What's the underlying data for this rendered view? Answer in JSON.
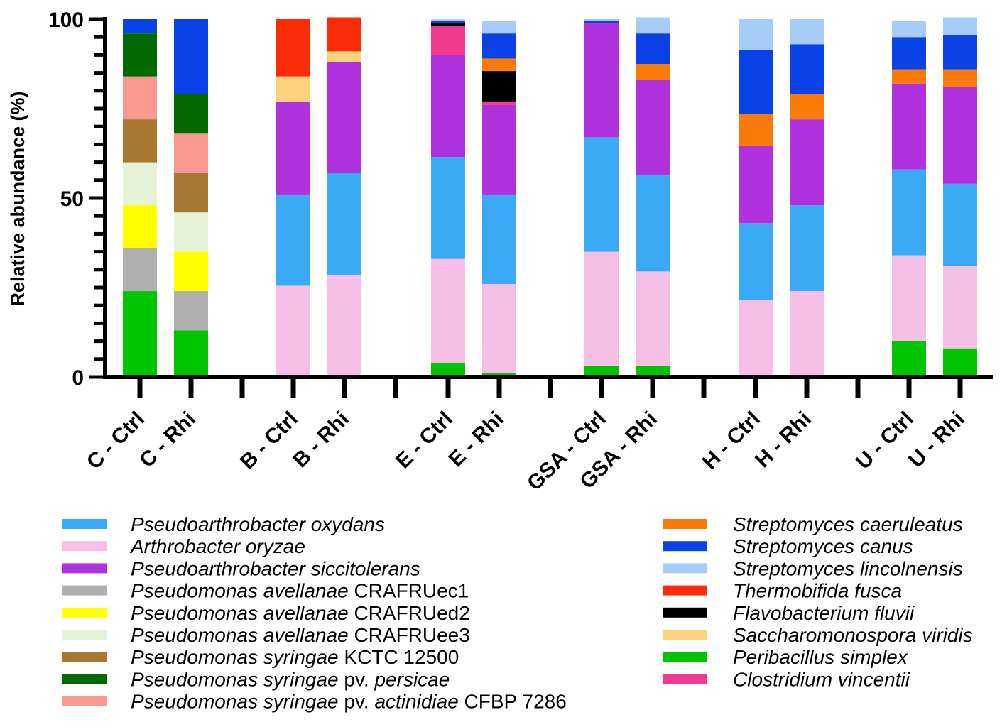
{
  "chart_data": {
    "type": "bar",
    "stacked": true,
    "ylabel": "Relative abundance (%)",
    "ylim": [
      0,
      100
    ],
    "yticks": [
      0,
      50,
      100
    ],
    "categories": [
      "C - Ctrl",
      "C - Rhi",
      "B - Ctrl",
      "B - Rhi",
      "E - Ctrl",
      "E - Rhi",
      "GSA - Ctrl",
      "GSA - Rhi",
      "H - Ctrl",
      "H - Rhi",
      "U - Ctrl",
      "U - Rhi"
    ],
    "series": [
      {
        "key": "peribacillus",
        "name": "Peribacillus simplex",
        "legend_parts": [
          {
            "t": "Peribacillus simplex",
            "i": true
          }
        ],
        "color": "#00c400",
        "values": [
          24,
          13,
          0,
          0,
          4,
          1,
          3,
          3,
          0,
          0,
          10,
          8
        ]
      },
      {
        "key": "ec1",
        "name": "Pseudomonas avellanae CRAFRUec1",
        "legend_parts": [
          {
            "t": "Pseudomonas avellanae",
            "i": true
          },
          {
            "t": " CRAFRUec1",
            "i": false
          }
        ],
        "color": "#b0b0b0",
        "values": [
          12,
          11,
          0,
          0,
          0,
          0,
          0,
          0,
          0,
          0,
          0,
          0
        ]
      },
      {
        "key": "ed2",
        "name": "Pseudomonas avellanae CRAFRUed2",
        "legend_parts": [
          {
            "t": "Pseudomonas avellanae",
            "i": true
          },
          {
            "t": " CRAFRUed2",
            "i": false
          }
        ],
        "color": "#ffff00",
        "values": [
          12,
          11,
          0,
          0,
          0,
          0,
          0,
          0,
          0,
          0,
          0,
          0
        ]
      },
      {
        "key": "ee3",
        "name": "Pseudomonas avellanae CRAFRUee3",
        "legend_parts": [
          {
            "t": "Pseudomonas avellanae",
            "i": true
          },
          {
            "t": " CRAFRUee3",
            "i": false
          }
        ],
        "color": "#e6f2d8",
        "values": [
          12,
          11,
          0,
          0,
          0,
          0,
          0,
          0,
          0,
          0,
          0,
          0
        ]
      },
      {
        "key": "kctc",
        "name": "Pseudomonas syringae KCTC 12500",
        "legend_parts": [
          {
            "t": "Pseudomonas syringae",
            "i": true
          },
          {
            "t": " KCTC 12500",
            "i": false
          }
        ],
        "color": "#a67832",
        "values": [
          12,
          11,
          0,
          0,
          0,
          0,
          0,
          0,
          0,
          0,
          0,
          0
        ]
      },
      {
        "key": "actinidiae",
        "name": "Pseudomonas syringae pv. actinidiae CFBP 7286",
        "legend_parts": [
          {
            "t": "Pseudomonas syringae",
            "i": true
          },
          {
            "t": " pv. ",
            "i": false
          },
          {
            "t": "actinidiae",
            "i": true
          },
          {
            "t": " CFBP 7286",
            "i": false
          }
        ],
        "color": "#f8988e",
        "values": [
          12,
          11,
          0,
          0,
          0,
          0,
          0,
          0,
          0,
          0,
          0,
          0
        ]
      },
      {
        "key": "persicae",
        "name": "Pseudomonas syringae pv. persicae",
        "legend_parts": [
          {
            "t": "Pseudomonas syringae",
            "i": true
          },
          {
            "t": " pv. ",
            "i": false
          },
          {
            "t": "persicae",
            "i": true
          }
        ],
        "color": "#006a00",
        "values": [
          12,
          11,
          0,
          0,
          0,
          0,
          0,
          0,
          0,
          0,
          0,
          0
        ]
      },
      {
        "key": "arthro",
        "name": "Arthrobacter oryzae",
        "legend_parts": [
          {
            "t": "Arthrobacter oryzae",
            "i": true
          }
        ],
        "color": "#f6bfe6",
        "values": [
          0,
          0,
          25.5,
          28.5,
          29,
          25,
          32,
          26.5,
          21.5,
          24,
          24,
          23
        ]
      },
      {
        "key": "oxydans",
        "name": "Pseudoarthrobacter oxydans",
        "legend_parts": [
          {
            "t": "Pseudoarthrobacter oxydans",
            "i": true
          }
        ],
        "color": "#3aaaf6",
        "values": [
          0,
          0,
          25.5,
          28.5,
          28.5,
          25,
          32,
          27,
          21.5,
          24,
          24,
          23
        ]
      },
      {
        "key": "sicci",
        "name": "Pseudoarthrobacter siccitolerans",
        "legend_parts": [
          {
            "t": "Pseudoarthrobacter siccitolerans",
            "i": true
          }
        ],
        "color": "#b032de",
        "values": [
          0,
          0,
          26,
          31,
          28.5,
          25,
          32,
          26.5,
          21.5,
          24,
          24,
          27
        ]
      },
      {
        "key": "clostridium",
        "name": "Clostridium vincentii",
        "legend_parts": [
          {
            "t": "Clostridium vincentii",
            "i": true
          }
        ],
        "color": "#f23a8e",
        "values": [
          0,
          0,
          0,
          0,
          8,
          1,
          0,
          0,
          0,
          0,
          0,
          0
        ]
      },
      {
        "key": "flavo",
        "name": "Flavobacterium fluvii",
        "legend_parts": [
          {
            "t": "Flavobacterium fluvii",
            "i": true
          }
        ],
        "color": "#000000",
        "values": [
          0,
          0,
          0,
          0,
          1,
          8.5,
          0,
          0,
          0,
          0,
          0,
          0
        ]
      },
      {
        "key": "caeruleatus",
        "name": "Streptomyces caeruleatus",
        "legend_parts": [
          {
            "t": "Streptomyces caeruleatus",
            "i": true
          }
        ],
        "color": "#fa7a0a",
        "values": [
          0,
          0,
          0,
          0,
          0,
          3.5,
          0,
          4.5,
          9,
          7,
          4,
          5
        ]
      },
      {
        "key": "canus",
        "name": "Streptomyces canus",
        "legend_parts": [
          {
            "t": "Streptomyces canus",
            "i": true
          }
        ],
        "color": "#0a42e8",
        "values": [
          4,
          21,
          0,
          0,
          0.5,
          7,
          0.5,
          8.5,
          18,
          14,
          9,
          9.5
        ]
      },
      {
        "key": "saccharo",
        "name": "Saccharomonospora viridis",
        "legend_parts": [
          {
            "t": "Saccharomonospora viridis",
            "i": true
          }
        ],
        "color": "#fdd27e",
        "values": [
          0,
          0,
          7,
          3,
          0,
          0,
          0,
          0,
          0,
          0,
          0,
          0
        ]
      },
      {
        "key": "thermo",
        "name": "Thermobifida fusca",
        "legend_parts": [
          {
            "t": "Thermobifida fusca",
            "i": true
          }
        ],
        "color": "#fa2c08",
        "values": [
          0,
          0,
          16,
          9.5,
          0,
          0,
          0,
          0,
          0,
          0,
          0,
          0
        ]
      },
      {
        "key": "lincolnensis",
        "name": "Streptomyces lincolnensis",
        "legend_parts": [
          {
            "t": "Streptomyces lincolnensis",
            "i": true
          }
        ],
        "color": "#a6cdf8",
        "values": [
          0,
          0,
          0,
          0,
          0.5,
          3.5,
          0.5,
          4.5,
          8.5,
          7,
          4.5,
          5
        ]
      }
    ],
    "legend": {
      "position": "bottom",
      "left_column": [
        "oxydans",
        "arthro",
        "sicci",
        "ec1",
        "ed2",
        "ee3",
        "kctc",
        "persicae",
        "actinidiae"
      ],
      "right_column": [
        "caeruleatus",
        "canus",
        "lincolnensis",
        "thermo",
        "flavo",
        "saccharo",
        "peribacillus",
        "clostridium"
      ]
    }
  }
}
